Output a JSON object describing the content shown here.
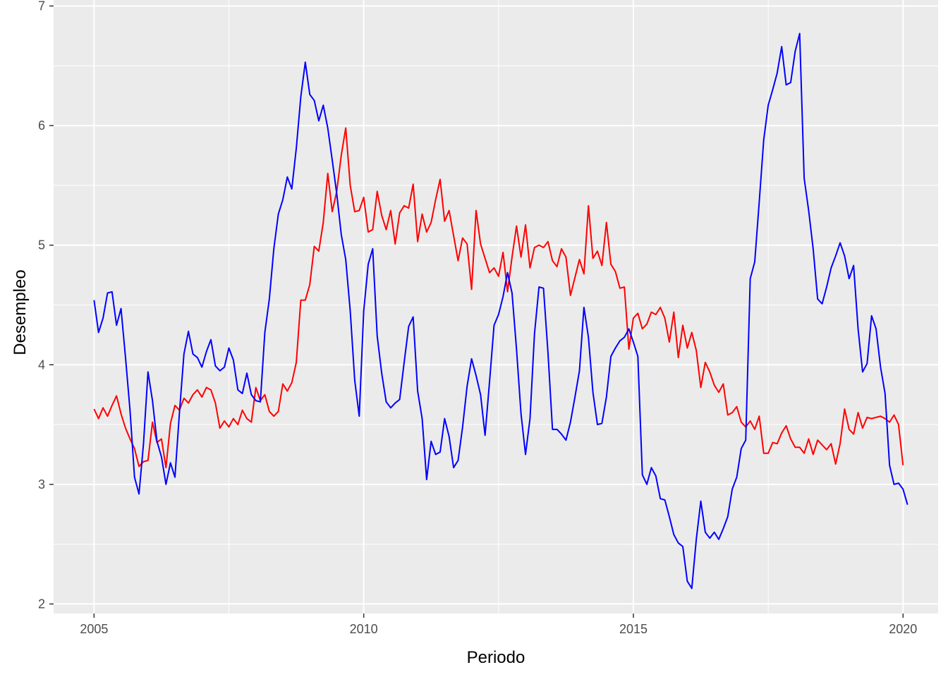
{
  "chart_data": {
    "type": "line",
    "title": "",
    "xlabel": "Periodo",
    "ylabel": "Desempleo",
    "xlim": [
      2004.25,
      2020.65
    ],
    "ylim": [
      1.92,
      7.05
    ],
    "x_ticks": [
      2005,
      2010,
      2015,
      2020
    ],
    "x_tick_labels": [
      "2005",
      "2010",
      "2015",
      "2020"
    ],
    "y_ticks": [
      2,
      3,
      4,
      5,
      6,
      7
    ],
    "y_tick_labels": [
      "2",
      "3",
      "4",
      "5",
      "6",
      "7"
    ],
    "grid": true,
    "legend": "none",
    "series": [
      {
        "color": "#FF0000",
        "x_start": 2005,
        "x_step": 0.08333,
        "values": [
          3.63,
          3.55,
          3.64,
          3.57,
          3.66,
          3.74,
          3.59,
          3.47,
          3.38,
          3.3,
          3.15,
          3.19,
          3.2,
          3.52,
          3.35,
          3.38,
          3.14,
          3.51,
          3.66,
          3.62,
          3.72,
          3.68,
          3.75,
          3.79,
          3.73,
          3.81,
          3.79,
          3.68,
          3.47,
          3.53,
          3.48,
          3.55,
          3.5,
          3.62,
          3.55,
          3.52,
          3.81,
          3.7,
          3.75,
          3.61,
          3.57,
          3.61,
          3.84,
          3.78,
          3.85,
          4.02,
          4.54,
          4.54,
          4.67,
          4.99,
          4.95,
          5.19,
          5.6,
          5.28,
          5.45,
          5.75,
          5.98,
          5.5,
          5.28,
          5.29,
          5.4,
          5.11,
          5.13,
          5.45,
          5.25,
          5.13,
          5.29,
          5.01,
          5.27,
          5.33,
          5.31,
          5.51,
          5.03,
          5.26,
          5.11,
          5.19,
          5.38,
          5.55,
          5.2,
          5.29,
          5.08,
          4.87,
          5.06,
          5.01,
          4.63,
          5.29,
          5.01,
          4.89,
          4.77,
          4.81,
          4.74,
          4.94,
          4.61,
          4.9,
          5.16,
          4.9,
          5.17,
          4.81,
          4.98,
          5.0,
          4.98,
          5.03,
          4.87,
          4.82,
          4.97,
          4.9,
          4.58,
          4.73,
          4.88,
          4.76,
          5.33,
          4.89,
          4.95,
          4.83,
          5.19,
          4.84,
          4.78,
          4.64,
          4.65,
          4.13,
          4.39,
          4.43,
          4.3,
          4.34,
          4.44,
          4.42,
          4.48,
          4.39,
          4.19,
          4.44,
          4.06,
          4.33,
          4.14,
          4.27,
          4.12,
          3.81,
          4.02,
          3.94,
          3.83,
          3.77,
          3.84,
          3.58,
          3.6,
          3.65,
          3.52,
          3.48,
          3.53,
          3.46,
          3.57,
          3.26,
          3.26,
          3.35,
          3.34,
          3.43,
          3.49,
          3.38,
          3.31,
          3.31,
          3.26,
          3.38,
          3.25,
          3.37,
          3.33,
          3.29,
          3.34,
          3.17,
          3.34,
          3.63,
          3.46,
          3.42,
          3.6,
          3.47,
          3.56,
          3.55,
          3.56,
          3.57,
          3.55,
          3.52,
          3.58,
          3.5,
          3.16
        ]
      },
      {
        "color": "#0000FF",
        "x_start": 2005,
        "x_step": 0.08333,
        "values": [
          4.54,
          4.27,
          4.39,
          4.6,
          4.61,
          4.33,
          4.47,
          4.06,
          3.62,
          3.06,
          2.92,
          3.34,
          3.94,
          3.7,
          3.36,
          3.23,
          3.0,
          3.18,
          3.06,
          3.6,
          4.09,
          4.28,
          4.09,
          4.06,
          3.98,
          4.11,
          4.21,
          3.99,
          3.95,
          3.98,
          4.14,
          4.04,
          3.79,
          3.76,
          3.93,
          3.75,
          3.7,
          3.69,
          4.27,
          4.55,
          4.97,
          5.26,
          5.38,
          5.57,
          5.47,
          5.81,
          6.24,
          6.53,
          6.26,
          6.21,
          6.04,
          6.17,
          5.98,
          5.71,
          5.43,
          5.09,
          4.88,
          4.45,
          3.87,
          3.57,
          4.45,
          4.84,
          4.97,
          4.24,
          3.93,
          3.69,
          3.64,
          3.68,
          3.71,
          4.02,
          4.32,
          4.4,
          3.78,
          3.55,
          3.04,
          3.36,
          3.25,
          3.27,
          3.55,
          3.4,
          3.14,
          3.2,
          3.48,
          3.82,
          4.05,
          3.91,
          3.75,
          3.41,
          3.86,
          4.33,
          4.42,
          4.57,
          4.77,
          4.6,
          4.13,
          3.59,
          3.25,
          3.55,
          4.26,
          4.65,
          4.64,
          4.1,
          3.46,
          3.46,
          3.42,
          3.37,
          3.52,
          3.73,
          3.95,
          4.48,
          4.23,
          3.77,
          3.5,
          3.51,
          3.73,
          4.07,
          4.14,
          4.2,
          4.23,
          4.3,
          4.19,
          4.07,
          3.08,
          3.0,
          3.14,
          3.07,
          2.88,
          2.87,
          2.73,
          2.58,
          2.51,
          2.48,
          2.19,
          2.13,
          2.54,
          2.86,
          2.6,
          2.55,
          2.6,
          2.54,
          2.63,
          2.73,
          2.96,
          3.06,
          3.3,
          3.37,
          4.72,
          4.86,
          5.36,
          5.88,
          6.17,
          6.3,
          6.44,
          6.66,
          6.34,
          6.36,
          6.62,
          6.77,
          5.56,
          5.29,
          4.97,
          4.55,
          4.51,
          4.65,
          4.81,
          4.91,
          5.02,
          4.91,
          4.72,
          4.83,
          4.3,
          3.94,
          4.01,
          4.41,
          4.3,
          3.98,
          3.76,
          3.16,
          3.0,
          3.01,
          2.96,
          2.83
        ]
      }
    ]
  }
}
